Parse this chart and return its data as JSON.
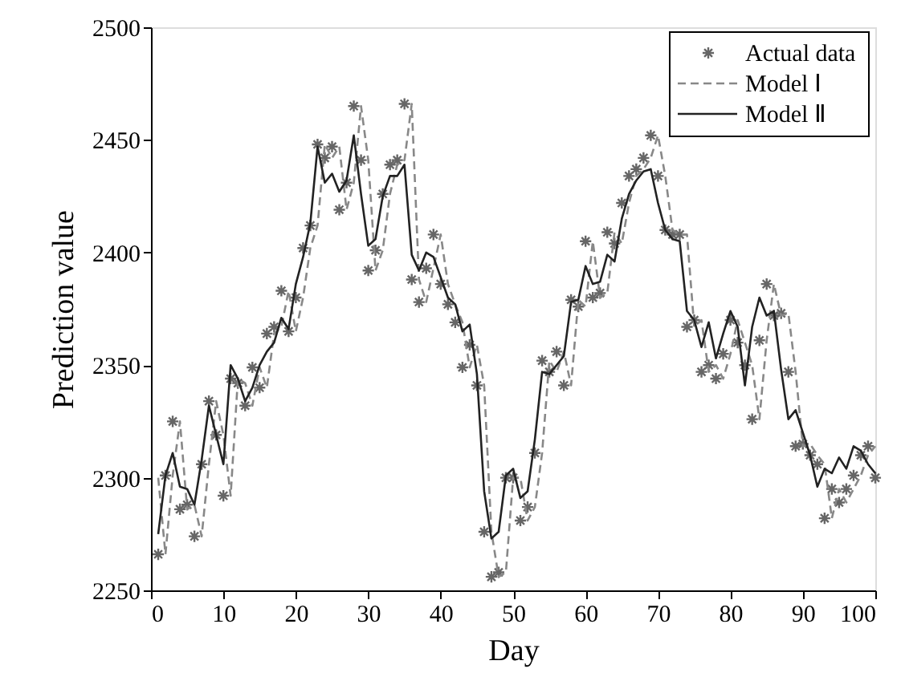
{
  "chart_data": {
    "type": "line",
    "xlabel": "Day",
    "ylabel": "Prediction value",
    "x": [
      1,
      2,
      3,
      4,
      5,
      6,
      7,
      8,
      9,
      10,
      11,
      12,
      13,
      14,
      15,
      16,
      17,
      18,
      19,
      20,
      21,
      22,
      23,
      24,
      25,
      26,
      27,
      28,
      29,
      30,
      31,
      32,
      33,
      34,
      35,
      36,
      37,
      38,
      39,
      40,
      41,
      42,
      43,
      44,
      45,
      46,
      47,
      48,
      49,
      50,
      51,
      52,
      53,
      54,
      55,
      56,
      57,
      58,
      59,
      60,
      61,
      62,
      63,
      64,
      65,
      66,
      67,
      68,
      69,
      70,
      71,
      72,
      73,
      74,
      75,
      76,
      77,
      78,
      79,
      80,
      81,
      82,
      83,
      84,
      85,
      86,
      87,
      88,
      89,
      90,
      91,
      92,
      93,
      94,
      95,
      96,
      97,
      98,
      99,
      100
    ],
    "series": [
      {
        "name": "Actual data",
        "type": "scatter",
        "marker": "cross",
        "color": "#666666",
        "values": [
          2266,
          2301,
          2325,
          2286,
          2288,
          2274,
          2306,
          2334,
          2319,
          2292,
          2344,
          2342,
          2332,
          2349,
          2340,
          2364,
          2367,
          2383,
          2365,
          2380,
          2402,
          2412,
          2448,
          2442,
          2447,
          2419,
          2431,
          2465,
          2441,
          2392,
          2401,
          2426,
          2439,
          2441,
          2466,
          2388,
          2378,
          2393,
          2408,
          2386,
          2377,
          2369,
          2349,
          2359,
          2341,
          2276,
          2256,
          2258,
          2300,
          2300,
          2281,
          2287,
          2311,
          2352,
          2347,
          2356,
          2341,
          2379,
          2376,
          2405,
          2380,
          2382,
          2409,
          2404,
          2422,
          2434,
          2437,
          2442,
          2452,
          2434,
          2410,
          2408,
          2408,
          2367,
          2370,
          2347,
          2350,
          2344,
          2355,
          2370,
          2360,
          2350,
          2326,
          2361,
          2386,
          2372,
          2373,
          2347,
          2314,
          2315,
          2310,
          2306,
          2282,
          2295,
          2289,
          2295,
          2301,
          2310,
          2314,
          2300
        ]
      },
      {
        "name": "Model Ⅰ",
        "line_style": "dashed",
        "color": "#888888",
        "values": [
          2300,
          2266,
          2301,
          2325,
          2286,
          2288,
          2274,
          2306,
          2334,
          2319,
          2292,
          2344,
          2342,
          2332,
          2349,
          2340,
          2364,
          2367,
          2383,
          2365,
          2380,
          2402,
          2412,
          2448,
          2442,
          2447,
          2419,
          2431,
          2465,
          2441,
          2392,
          2401,
          2426,
          2439,
          2441,
          2466,
          2388,
          2378,
          2393,
          2408,
          2386,
          2377,
          2369,
          2349,
          2359,
          2341,
          2276,
          2256,
          2258,
          2300,
          2300,
          2281,
          2287,
          2311,
          2352,
          2347,
          2356,
          2341,
          2379,
          2376,
          2405,
          2380,
          2382,
          2409,
          2404,
          2422,
          2434,
          2437,
          2442,
          2452,
          2434,
          2410,
          2408,
          2408,
          2367,
          2370,
          2347,
          2350,
          2344,
          2355,
          2370,
          2360,
          2350,
          2326,
          2361,
          2386,
          2372,
          2373,
          2347,
          2314,
          2315,
          2310,
          2306,
          2282,
          2295,
          2289,
          2295,
          2301,
          2310,
          2314
        ]
      },
      {
        "name": "Model Ⅱ",
        "line_style": "solid",
        "color": "#222222",
        "values": [
          2275,
          2301,
          2311,
          2296,
          2295,
          2288,
          2308,
          2332,
          2319,
          2306,
          2350,
          2344,
          2334,
          2340,
          2350,
          2356,
          2360,
          2371,
          2366,
          2386,
          2398,
          2413,
          2447,
          2431,
          2435,
          2427,
          2432,
          2452,
          2426,
          2403,
          2406,
          2425,
          2434,
          2434,
          2439,
          2399,
          2392,
          2400,
          2398,
          2389,
          2380,
          2377,
          2365,
          2368,
          2346,
          2294,
          2273,
          2276,
          2301,
          2304,
          2291,
          2294,
          2317,
          2347,
          2346,
          2350,
          2354,
          2378,
          2379,
          2394,
          2386,
          2387,
          2399,
          2396,
          2415,
          2426,
          2432,
          2436,
          2437,
          2422,
          2410,
          2406,
          2405,
          2374,
          2370,
          2358,
          2369,
          2353,
          2364,
          2374,
          2367,
          2341,
          2367,
          2380,
          2372,
          2374,
          2348,
          2326,
          2330,
          2320,
          2310,
          2296,
          2304,
          2302,
          2309,
          2304,
          2314,
          2312,
          2306,
          2302
        ]
      }
    ],
    "xlim": [
      0,
      100
    ],
    "xticks": [
      0,
      10,
      20,
      30,
      40,
      50,
      60,
      70,
      80,
      90,
      100
    ],
    "ylim": [
      2250,
      2500
    ],
    "yticks": [
      2250,
      2300,
      2350,
      2400,
      2450,
      2500
    ],
    "grid": false,
    "legend": "top right"
  }
}
